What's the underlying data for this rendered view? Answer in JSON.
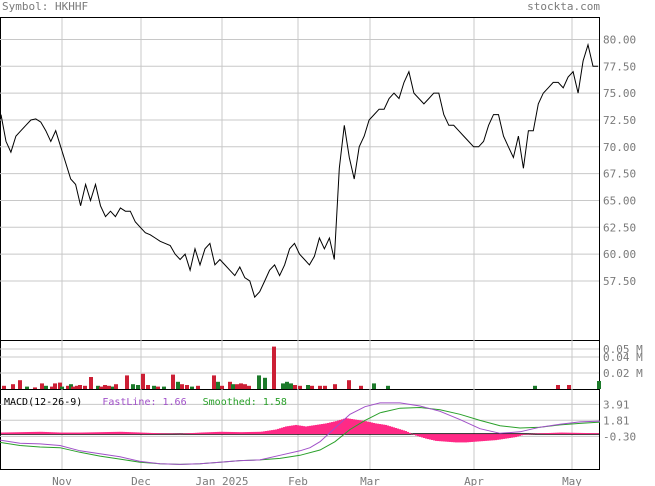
{
  "header": {
    "symbol_label": "Symbol: HKHHF",
    "site": "stockta.com"
  },
  "chart_data": [
    {
      "type": "line",
      "panel": "price",
      "x_tick_labels": [
        "Nov",
        "Dec",
        "Jan 2025",
        "Feb",
        "Mar",
        "Apr",
        "May"
      ],
      "y_tick_labels": [
        "80.00",
        "77.50",
        "75.00",
        "72.50",
        "70.00",
        "67.50",
        "65.00",
        "62.50",
        "60.00",
        "57.50"
      ],
      "ylim": [
        52,
        82
      ],
      "grid": true,
      "values": [
        73.0,
        70.5,
        69.5,
        71.0,
        71.5,
        72.0,
        72.5,
        72.6,
        72.3,
        71.5,
        70.5,
        71.5,
        70.0,
        68.5,
        67.0,
        66.5,
        64.5,
        66.5,
        65.0,
        66.5,
        64.5,
        63.5,
        64.0,
        63.5,
        64.3,
        64.0,
        64.0,
        63.0,
        62.5,
        62.0,
        61.8,
        61.5,
        61.2,
        61.0,
        60.8,
        60.0,
        59.5,
        60.0,
        58.5,
        60.5,
        59.0,
        60.5,
        61.0,
        59.0,
        59.5,
        59.0,
        58.5,
        58.0,
        58.8,
        57.8,
        57.5,
        56.0,
        56.5,
        57.5,
        58.5,
        59.0,
        58.0,
        59.0,
        60.5,
        61.0,
        60.0,
        59.5,
        59.0,
        59.8,
        61.5,
        60.5,
        61.5,
        59.5,
        68.0,
        72.0,
        69.0,
        67.0,
        70.0,
        71.0,
        72.5,
        73.0,
        73.5,
        73.5,
        74.5,
        75.0,
        74.5,
        76.0,
        77.0,
        75.0,
        74.5,
        74.0,
        74.5,
        75.0,
        75.0,
        73.0,
        72.0,
        72.0,
        71.5,
        71.0,
        70.5,
        70.0,
        70.0,
        70.5,
        72.0,
        73.0,
        73.0,
        71.0,
        70.0,
        69.0,
        71.0,
        68.0,
        71.5,
        71.5,
        74.0,
        75.0,
        75.5,
        76.0,
        76.0,
        75.5,
        76.5,
        77.0,
        75.0,
        78.0,
        79.5,
        77.5,
        77.5
      ]
    },
    {
      "type": "bar",
      "panel": "volume",
      "y_tick_labels": [
        "0.05 M",
        "0.04 M",
        "0.02 M"
      ],
      "ylim": [
        0,
        0.06
      ],
      "up_color": "#1c7a2a",
      "down_color": "#cc1f35",
      "bars": [
        {
          "x": 2,
          "v": 0.004,
          "up": false
        },
        {
          "x": 11,
          "v": 0.006,
          "up": false
        },
        {
          "x": 18,
          "v": 0.011,
          "up": false
        },
        {
          "x": 25,
          "v": 0.003,
          "up": true
        },
        {
          "x": 33,
          "v": 0.002,
          "up": false
        },
        {
          "x": 40,
          "v": 0.007,
          "up": false
        },
        {
          "x": 44,
          "v": 0.004,
          "up": true
        },
        {
          "x": 50,
          "v": 0.003,
          "up": false
        },
        {
          "x": 53,
          "v": 0.007,
          "up": false
        },
        {
          "x": 58,
          "v": 0.008,
          "up": false
        },
        {
          "x": 60,
          "v": 0.003,
          "up": true
        },
        {
          "x": 66,
          "v": 0.004,
          "up": false
        },
        {
          "x": 69,
          "v": 0.006,
          "up": true
        },
        {
          "x": 71,
          "v": 0.003,
          "up": false
        },
        {
          "x": 75,
          "v": 0.004,
          "up": false
        },
        {
          "x": 78,
          "v": 0.005,
          "up": false
        },
        {
          "x": 83,
          "v": 0.004,
          "up": false
        },
        {
          "x": 89,
          "v": 0.015,
          "up": false
        },
        {
          "x": 96,
          "v": 0.004,
          "up": true
        },
        {
          "x": 99,
          "v": 0.003,
          "up": false
        },
        {
          "x": 103,
          "v": 0.005,
          "up": false
        },
        {
          "x": 107,
          "v": 0.004,
          "up": false
        },
        {
          "x": 111,
          "v": 0.003,
          "up": true
        },
        {
          "x": 114,
          "v": 0.006,
          "up": false
        },
        {
          "x": 125,
          "v": 0.017,
          "up": false
        },
        {
          "x": 131,
          "v": 0.006,
          "up": true
        },
        {
          "x": 136,
          "v": 0.005,
          "up": true
        },
        {
          "x": 141,
          "v": 0.019,
          "up": false
        },
        {
          "x": 146,
          "v": 0.005,
          "up": false
        },
        {
          "x": 152,
          "v": 0.004,
          "up": true
        },
        {
          "x": 156,
          "v": 0.003,
          "up": false
        },
        {
          "x": 162,
          "v": 0.003,
          "up": true
        },
        {
          "x": 171,
          "v": 0.018,
          "up": false
        },
        {
          "x": 176,
          "v": 0.009,
          "up": true
        },
        {
          "x": 180,
          "v": 0.006,
          "up": false
        },
        {
          "x": 185,
          "v": 0.005,
          "up": false
        },
        {
          "x": 190,
          "v": 0.003,
          "up": true
        },
        {
          "x": 196,
          "v": 0.004,
          "up": false
        },
        {
          "x": 212,
          "v": 0.017,
          "up": false
        },
        {
          "x": 216,
          "v": 0.009,
          "up": true
        },
        {
          "x": 220,
          "v": 0.004,
          "up": false
        },
        {
          "x": 228,
          "v": 0.009,
          "up": false
        },
        {
          "x": 231,
          "v": 0.006,
          "up": true
        },
        {
          "x": 235,
          "v": 0.006,
          "up": false
        },
        {
          "x": 239,
          "v": 0.007,
          "up": false
        },
        {
          "x": 243,
          "v": 0.006,
          "up": false
        },
        {
          "x": 247,
          "v": 0.004,
          "up": false
        },
        {
          "x": 257,
          "v": 0.017,
          "up": true
        },
        {
          "x": 263,
          "v": 0.014,
          "up": true
        },
        {
          "x": 272,
          "v": 0.053,
          "up": false
        },
        {
          "x": 281,
          "v": 0.007,
          "up": true
        },
        {
          "x": 285,
          "v": 0.009,
          "up": true
        },
        {
          "x": 289,
          "v": 0.007,
          "up": true
        },
        {
          "x": 293,
          "v": 0.005,
          "up": false
        },
        {
          "x": 298,
          "v": 0.004,
          "up": false
        },
        {
          "x": 306,
          "v": 0.005,
          "up": true
        },
        {
          "x": 310,
          "v": 0.004,
          "up": false
        },
        {
          "x": 318,
          "v": 0.004,
          "up": false
        },
        {
          "x": 323,
          "v": 0.004,
          "up": false
        },
        {
          "x": 333,
          "v": 0.006,
          "up": false
        },
        {
          "x": 347,
          "v": 0.011,
          "up": false
        },
        {
          "x": 359,
          "v": 0.004,
          "up": false
        },
        {
          "x": 372,
          "v": 0.007,
          "up": true
        },
        {
          "x": 386,
          "v": 0.004,
          "up": true
        },
        {
          "x": 533,
          "v": 0.004,
          "up": true
        },
        {
          "x": 556,
          "v": 0.005,
          "up": false
        },
        {
          "x": 567,
          "v": 0.005,
          "up": false
        },
        {
          "x": 597,
          "v": 0.01,
          "up": true
        }
      ]
    },
    {
      "type": "line",
      "panel": "macd",
      "legend": {
        "title": "MACD(12-26-9)",
        "fast": "FastLine: 1.66",
        "smooth": "Smoothed: 1.58"
      },
      "y_tick_labels": [
        "3.91",
        "1.81",
        "-0.30"
      ],
      "ylim": [
        -4.6,
        5.8
      ],
      "fast_color": "#a050c8",
      "smooth_color": "#2aa02a",
      "hist_color": "#ff2a86",
      "fast_line": [
        [
          0,
          -0.8
        ],
        [
          20,
          -1.2
        ],
        [
          40,
          -1.3
        ],
        [
          60,
          -1.5
        ],
        [
          80,
          -2.2
        ],
        [
          100,
          -2.6
        ],
        [
          120,
          -3.0
        ],
        [
          140,
          -3.6
        ],
        [
          160,
          -3.9
        ],
        [
          180,
          -4.0
        ],
        [
          200,
          -3.9
        ],
        [
          220,
          -3.7
        ],
        [
          240,
          -3.5
        ],
        [
          260,
          -3.4
        ],
        [
          280,
          -2.8
        ],
        [
          300,
          -2.2
        ],
        [
          310,
          -1.8
        ],
        [
          320,
          -1.0
        ],
        [
          335,
          0.8
        ],
        [
          350,
          2.6
        ],
        [
          365,
          3.6
        ],
        [
          380,
          4.1
        ],
        [
          400,
          4.1
        ],
        [
          420,
          3.7
        ],
        [
          440,
          3.0
        ],
        [
          460,
          1.9
        ],
        [
          480,
          0.7
        ],
        [
          500,
          0.1
        ],
        [
          520,
          0.3
        ],
        [
          540,
          0.9
        ],
        [
          560,
          1.3
        ],
        [
          580,
          1.6
        ],
        [
          600,
          1.7
        ]
      ],
      "smooth_line": [
        [
          0,
          -1.1
        ],
        [
          20,
          -1.5
        ],
        [
          40,
          -1.7
        ],
        [
          60,
          -1.8
        ],
        [
          80,
          -2.4
        ],
        [
          100,
          -2.9
        ],
        [
          120,
          -3.3
        ],
        [
          140,
          -3.7
        ],
        [
          160,
          -3.9
        ],
        [
          180,
          -4.0
        ],
        [
          200,
          -3.9
        ],
        [
          220,
          -3.7
        ],
        [
          240,
          -3.5
        ],
        [
          260,
          -3.4
        ],
        [
          280,
          -3.2
        ],
        [
          300,
          -2.8
        ],
        [
          320,
          -2.1
        ],
        [
          335,
          -1.0
        ],
        [
          350,
          0.6
        ],
        [
          365,
          1.8
        ],
        [
          380,
          2.8
        ],
        [
          400,
          3.4
        ],
        [
          420,
          3.5
        ],
        [
          440,
          3.2
        ],
        [
          460,
          2.6
        ],
        [
          480,
          1.8
        ],
        [
          500,
          1.1
        ],
        [
          520,
          0.8
        ],
        [
          540,
          0.9
        ],
        [
          560,
          1.2
        ],
        [
          580,
          1.4
        ],
        [
          600,
          1.58
        ]
      ],
      "histogram": [
        [
          0,
          0.2
        ],
        [
          20,
          0.25
        ],
        [
          40,
          0.3
        ],
        [
          60,
          0.2
        ],
        [
          80,
          0.2
        ],
        [
          100,
          0.25
        ],
        [
          120,
          0.3
        ],
        [
          140,
          0.2
        ],
        [
          160,
          0.1
        ],
        [
          180,
          0.05
        ],
        [
          200,
          0.2
        ],
        [
          220,
          0.3
        ],
        [
          240,
          0.25
        ],
        [
          260,
          0.3
        ],
        [
          275,
          0.6
        ],
        [
          285,
          1.0
        ],
        [
          295,
          1.2
        ],
        [
          305,
          1.0
        ],
        [
          315,
          1.2
        ],
        [
          325,
          1.4
        ],
        [
          335,
          1.7
        ],
        [
          345,
          2.1
        ],
        [
          355,
          1.9
        ],
        [
          365,
          1.7
        ],
        [
          375,
          1.4
        ],
        [
          385,
          1.2
        ],
        [
          395,
          0.8
        ],
        [
          405,
          0.4
        ],
        [
          415,
          -0.2
        ],
        [
          425,
          -0.6
        ],
        [
          435,
          -0.9
        ],
        [
          445,
          -1.0
        ],
        [
          455,
          -1.1
        ],
        [
          465,
          -1.1
        ],
        [
          475,
          -1.0
        ],
        [
          485,
          -0.9
        ],
        [
          495,
          -0.8
        ],
        [
          505,
          -0.6
        ],
        [
          515,
          -0.4
        ],
        [
          525,
          0.0
        ],
        [
          540,
          0.1
        ],
        [
          560,
          0.2
        ],
        [
          580,
          0.15
        ],
        [
          600,
          0.1
        ]
      ]
    }
  ]
}
